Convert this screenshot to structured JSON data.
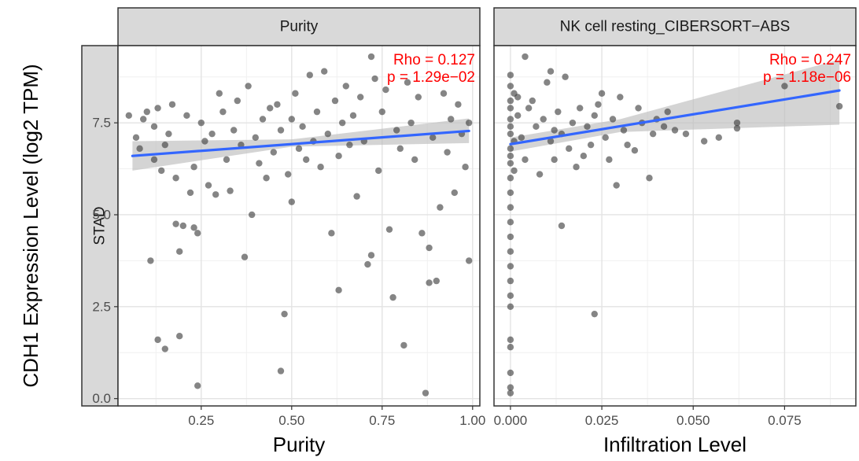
{
  "chart_data": {
    "type": "scatter",
    "ylabel": "CDH1 Expression Level (log2 TPM)",
    "row_strip": "STAD",
    "yticks": [
      "0.0",
      "2.5",
      "5.0",
      "7.5"
    ],
    "ytick_values": [
      0,
      2.5,
      5,
      7.5
    ],
    "ylim": [
      -0.2,
      9.6
    ],
    "grid": true,
    "colors": {
      "points": "#3a3a3a",
      "fit": "#3366ff",
      "band": "#bdbdbd",
      "annotation": "#ff0000",
      "strip": "#d9d9d9"
    },
    "panels": [
      {
        "strip": "Purity",
        "xlabel": "Purity",
        "xticks": [
          "0.25",
          "0.50",
          "0.75",
          "1.00"
        ],
        "xtick_values": [
          0.25,
          0.5,
          0.75,
          1.0
        ],
        "xlim": [
          0.02,
          1.02
        ],
        "rho_label": "Rho = 0.127",
        "p_label": "p = 1.29e−02",
        "fit": {
          "x0": 0.06,
          "y0": 6.6,
          "x1": 0.99,
          "y1": 7.28
        },
        "band": {
          "upper": [
            [
              0.06,
              7.0
            ],
            [
              0.5,
              7.05
            ],
            [
              0.99,
              7.62
            ]
          ],
          "lower": [
            [
              0.06,
              6.2
            ],
            [
              0.5,
              6.85
            ],
            [
              0.99,
              6.95
            ]
          ]
        },
        "points": [
          [
            0.05,
            7.7
          ],
          [
            0.07,
            7.1
          ],
          [
            0.08,
            6.8
          ],
          [
            0.09,
            7.6
          ],
          [
            0.1,
            7.8
          ],
          [
            0.11,
            3.75
          ],
          [
            0.12,
            7.4
          ],
          [
            0.12,
            6.5
          ],
          [
            0.13,
            1.6
          ],
          [
            0.13,
            7.9
          ],
          [
            0.14,
            6.2
          ],
          [
            0.15,
            6.9
          ],
          [
            0.15,
            1.35
          ],
          [
            0.16,
            7.2
          ],
          [
            0.17,
            8.0
          ],
          [
            0.18,
            6.0
          ],
          [
            0.18,
            4.75
          ],
          [
            0.19,
            4.0
          ],
          [
            0.19,
            1.7
          ],
          [
            0.2,
            4.7
          ],
          [
            0.21,
            7.7
          ],
          [
            0.22,
            5.6
          ],
          [
            0.23,
            4.65
          ],
          [
            0.23,
            6.3
          ],
          [
            0.24,
            4.5
          ],
          [
            0.24,
            0.35
          ],
          [
            0.25,
            7.5
          ],
          [
            0.26,
            7.0
          ],
          [
            0.27,
            5.8
          ],
          [
            0.28,
            7.2
          ],
          [
            0.29,
            5.55
          ],
          [
            0.3,
            8.3
          ],
          [
            0.31,
            7.8
          ],
          [
            0.32,
            6.5
          ],
          [
            0.33,
            5.65
          ],
          [
            0.34,
            7.3
          ],
          [
            0.35,
            8.1
          ],
          [
            0.36,
            6.9
          ],
          [
            0.37,
            3.85
          ],
          [
            0.38,
            8.5
          ],
          [
            0.39,
            5.0
          ],
          [
            0.4,
            7.1
          ],
          [
            0.41,
            6.4
          ],
          [
            0.42,
            7.6
          ],
          [
            0.43,
            6.0
          ],
          [
            0.44,
            7.9
          ],
          [
            0.45,
            6.7
          ],
          [
            0.46,
            8.0
          ],
          [
            0.47,
            7.3
          ],
          [
            0.47,
            0.75
          ],
          [
            0.48,
            2.3
          ],
          [
            0.49,
            6.1
          ],
          [
            0.5,
            7.6
          ],
          [
            0.5,
            5.35
          ],
          [
            0.51,
            8.3
          ],
          [
            0.52,
            6.8
          ],
          [
            0.53,
            7.4
          ],
          [
            0.54,
            6.5
          ],
          [
            0.55,
            8.8
          ],
          [
            0.56,
            7.0
          ],
          [
            0.57,
            7.8
          ],
          [
            0.58,
            6.3
          ],
          [
            0.59,
            8.9
          ],
          [
            0.6,
            7.2
          ],
          [
            0.61,
            4.5
          ],
          [
            0.62,
            8.1
          ],
          [
            0.63,
            6.6
          ],
          [
            0.63,
            2.95
          ],
          [
            0.64,
            7.5
          ],
          [
            0.65,
            8.5
          ],
          [
            0.66,
            6.9
          ],
          [
            0.67,
            7.7
          ],
          [
            0.68,
            5.5
          ],
          [
            0.69,
            8.2
          ],
          [
            0.7,
            7.0
          ],
          [
            0.71,
            3.65
          ],
          [
            0.72,
            3.9
          ],
          [
            0.72,
            9.3
          ],
          [
            0.73,
            8.7
          ],
          [
            0.74,
            6.2
          ],
          [
            0.75,
            7.8
          ],
          [
            0.76,
            8.4
          ],
          [
            0.77,
            4.6
          ],
          [
            0.78,
            2.75
          ],
          [
            0.79,
            7.3
          ],
          [
            0.8,
            6.8
          ],
          [
            0.81,
            1.45
          ],
          [
            0.82,
            8.6
          ],
          [
            0.83,
            7.5
          ],
          [
            0.84,
            6.5
          ],
          [
            0.85,
            8.2
          ],
          [
            0.86,
            4.5
          ],
          [
            0.87,
            0.15
          ],
          [
            0.88,
            3.15
          ],
          [
            0.88,
            4.1
          ],
          [
            0.89,
            7.1
          ],
          [
            0.9,
            3.2
          ],
          [
            0.91,
            5.2
          ],
          [
            0.92,
            8.3
          ],
          [
            0.93,
            6.7
          ],
          [
            0.94,
            7.6
          ],
          [
            0.95,
            5.6
          ],
          [
            0.96,
            8.0
          ],
          [
            0.97,
            7.2
          ],
          [
            0.98,
            6.3
          ],
          [
            0.99,
            3.75
          ],
          [
            0.99,
            7.5
          ]
        ]
      },
      {
        "strip": "NK cell resting_CIBERSORT−ABS",
        "xlabel": "Infiltration Level",
        "xticks": [
          "0.000",
          "0.025",
          "0.050",
          "0.075"
        ],
        "xtick_values": [
          0.0,
          0.025,
          0.05,
          0.075
        ],
        "xlim": [
          -0.0045,
          0.0945
        ],
        "rho_label": "Rho = 0.247",
        "p_label": "p = 1.18e−06",
        "fit": {
          "x0": 0.0,
          "y0": 6.92,
          "x1": 0.09,
          "y1": 8.38
        },
        "band": {
          "upper": [
            [
              0.0,
              7.1
            ],
            [
              0.03,
              7.6
            ],
            [
              0.09,
              9.22
            ]
          ],
          "lower": [
            [
              0.0,
              6.72
            ],
            [
              0.03,
              7.25
            ],
            [
              0.09,
              7.45
            ]
          ]
        },
        "points": [
          [
            0.0,
            8.8
          ],
          [
            0.0,
            8.5
          ],
          [
            0.0,
            8.1
          ],
          [
            0.0,
            7.6
          ],
          [
            0.0,
            7.2
          ],
          [
            0.0,
            6.8
          ],
          [
            0.0,
            6.4
          ],
          [
            0.0,
            6.0
          ],
          [
            0.0,
            5.6
          ],
          [
            0.0,
            5.2
          ],
          [
            0.0,
            4.8
          ],
          [
            0.0,
            4.4
          ],
          [
            0.0,
            4.0
          ],
          [
            0.0,
            3.6
          ],
          [
            0.0,
            3.2
          ],
          [
            0.0,
            2.8
          ],
          [
            0.0,
            2.5
          ],
          [
            0.0,
            1.6
          ],
          [
            0.0,
            1.4
          ],
          [
            0.0,
            0.7
          ],
          [
            0.0,
            0.3
          ],
          [
            0.0,
            0.15
          ],
          [
            0.0,
            7.9
          ],
          [
            0.0,
            7.4
          ],
          [
            0.0,
            6.6
          ],
          [
            0.001,
            8.3
          ],
          [
            0.001,
            7.0
          ],
          [
            0.001,
            6.2
          ],
          [
            0.002,
            7.7
          ],
          [
            0.002,
            8.2
          ],
          [
            0.003,
            7.1
          ],
          [
            0.004,
            9.3
          ],
          [
            0.004,
            6.5
          ],
          [
            0.005,
            7.9
          ],
          [
            0.006,
            8.1
          ],
          [
            0.007,
            7.4
          ],
          [
            0.008,
            6.1
          ],
          [
            0.009,
            7.6
          ],
          [
            0.01,
            8.6
          ],
          [
            0.011,
            7.0
          ],
          [
            0.011,
            8.9
          ],
          [
            0.012,
            7.3
          ],
          [
            0.012,
            6.5
          ],
          [
            0.013,
            7.8
          ],
          [
            0.014,
            7.2
          ],
          [
            0.014,
            4.7
          ],
          [
            0.015,
            8.75
          ],
          [
            0.016,
            6.8
          ],
          [
            0.017,
            7.5
          ],
          [
            0.018,
            6.3
          ],
          [
            0.019,
            7.9
          ],
          [
            0.02,
            6.6
          ],
          [
            0.021,
            7.4
          ],
          [
            0.022,
            6.9
          ],
          [
            0.023,
            7.7
          ],
          [
            0.023,
            2.3
          ],
          [
            0.024,
            8.0
          ],
          [
            0.025,
            8.3
          ],
          [
            0.026,
            7.1
          ],
          [
            0.027,
            6.5
          ],
          [
            0.028,
            7.6
          ],
          [
            0.029,
            5.8
          ],
          [
            0.03,
            8.2
          ],
          [
            0.031,
            7.3
          ],
          [
            0.032,
            6.9
          ],
          [
            0.034,
            6.75
          ],
          [
            0.035,
            7.9
          ],
          [
            0.036,
            7.5
          ],
          [
            0.038,
            6.0
          ],
          [
            0.039,
            7.2
          ],
          [
            0.04,
            7.6
          ],
          [
            0.042,
            7.4
          ],
          [
            0.043,
            7.8
          ],
          [
            0.045,
            7.3
          ],
          [
            0.048,
            7.2
          ],
          [
            0.053,
            7.0
          ],
          [
            0.057,
            7.1
          ],
          [
            0.062,
            7.5
          ],
          [
            0.062,
            7.35
          ],
          [
            0.075,
            8.5
          ],
          [
            0.09,
            7.95
          ]
        ]
      }
    ]
  }
}
